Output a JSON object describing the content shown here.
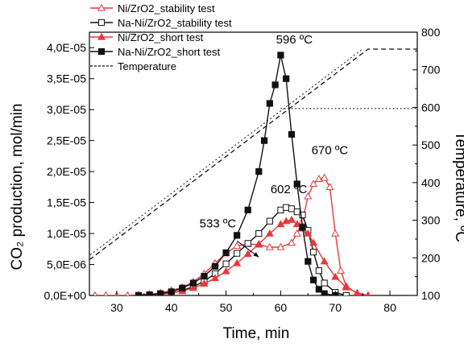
{
  "chart_data": {
    "type": "line",
    "xlabel": "Time, min",
    "ylabel_left": "CO₂ production, mol/min",
    "ylabel_right": "Temperature, ºC",
    "xlim": [
      25,
      85
    ],
    "ylim_left": [
      0,
      4.25e-05
    ],
    "ylim_right": [
      100,
      800
    ],
    "x_ticks": [
      30,
      40,
      50,
      60,
      70,
      80
    ],
    "y_left_ticks": [
      {
        "value": 0,
        "label": "0,0E+00"
      },
      {
        "value": 5e-06,
        "label": "5,0E-06"
      },
      {
        "value": 1e-05,
        "label": "1,0E-05"
      },
      {
        "value": 1.5e-05,
        "label": "1,5E-05"
      },
      {
        "value": 2e-05,
        "label": "2,0E-05"
      },
      {
        "value": 2.5e-05,
        "label": "2,5E-05"
      },
      {
        "value": 3e-05,
        "label": "3,0E-05"
      },
      {
        "value": 3.5e-05,
        "label": "3,5E-05"
      },
      {
        "value": 4e-05,
        "label": "4,0E-05"
      }
    ],
    "y_right_ticks": [
      100,
      200,
      300,
      400,
      500,
      600,
      700,
      800
    ],
    "series": [
      {
        "name": "Ni/ZrO2_stability test",
        "color": "#e8383d",
        "marker": "triangle-open",
        "axis": "left",
        "x": [
          26,
          28,
          30,
          32,
          34,
          36,
          38,
          40,
          42,
          44,
          46,
          48,
          50,
          52,
          54,
          56,
          58,
          60,
          62,
          63,
          64,
          65,
          66,
          67,
          68,
          69,
          70,
          71,
          72,
          74,
          76
        ],
        "y": [
          0,
          0,
          0,
          0,
          1e-07,
          2e-07,
          4e-07,
          8e-07,
          1.3e-06,
          2.2e-06,
          3.5e-06,
          5.2e-06,
          6.8e-06,
          8e-06,
          8.3e-06,
          8.2e-06,
          7.8e-06,
          7.8e-06,
          8.5e-06,
          1e-05,
          1.2e-05,
          1.6e-05,
          1.8e-05,
          1.88e-05,
          1.9e-05,
          1.75e-05,
          1e-05,
          4e-06,
          1.5e-06,
          3e-07,
          0
        ]
      },
      {
        "name": "Na-Ni/ZrO2_stability test",
        "color": "#111111",
        "marker": "square-open",
        "axis": "left",
        "x": [
          34,
          36,
          38,
          40,
          42,
          44,
          46,
          48,
          50,
          52,
          54,
          56,
          58,
          60,
          61,
          62,
          63,
          64,
          65,
          66,
          67,
          68,
          70,
          72
        ],
        "y": [
          0,
          1e-07,
          2e-07,
          4e-07,
          8e-07,
          1.4e-06,
          2.3e-06,
          3.5e-06,
          5.1e-06,
          6.8e-06,
          8.4e-06,
          1e-05,
          1.2e-05,
          1.38e-05,
          1.42e-05,
          1.4e-05,
          1.35e-05,
          1.3e-05,
          1.05e-05,
          7e-06,
          4e-06,
          2e-06,
          5e-07,
          0
        ]
      },
      {
        "name": "Ni/ZrO2_short test",
        "color": "#e8383d",
        "marker": "triangle-filled",
        "axis": "left",
        "x": [
          34,
          36,
          38,
          40,
          42,
          44,
          46,
          48,
          50,
          52,
          54,
          56,
          58,
          60,
          61,
          62,
          63,
          64,
          65,
          66,
          68,
          70,
          72,
          74,
          76
        ],
        "y": [
          0,
          1e-07,
          2e-07,
          4e-07,
          7e-07,
          1.2e-06,
          1.9e-06,
          2.8e-06,
          3.9e-06,
          5.2e-06,
          6.7e-06,
          8.3e-06,
          1e-05,
          1.15e-05,
          1.2e-05,
          1.22e-05,
          1.15e-05,
          1.08e-05,
          1e-05,
          8.5e-06,
          5.5e-06,
          3e-06,
          1.3e-06,
          4e-07,
          0
        ]
      },
      {
        "name": "Na-Ni/ZrO2_short test",
        "color": "#111111",
        "marker": "square-filled",
        "axis": "left",
        "x": [
          34,
          36,
          38,
          40,
          42,
          44,
          46,
          48,
          50,
          52,
          54,
          56,
          57,
          58,
          59,
          60,
          61,
          62,
          63,
          64,
          65,
          66,
          67,
          68,
          70
        ],
        "y": [
          0,
          1e-07,
          3e-07,
          6e-07,
          1.2e-06,
          2e-06,
          3.1e-06,
          4.7e-06,
          6.9e-06,
          9.7e-06,
          1.38e-05,
          2e-05,
          2.5e-05,
          3.1e-05,
          3.4e-05,
          3.88e-05,
          3.5e-05,
          2.6e-05,
          1.8e-05,
          1.1e-05,
          5.5e-06,
          2.5e-06,
          1e-06,
          3e-07,
          0
        ]
      },
      {
        "name": "Temperature",
        "color": "#111111",
        "marker": "none",
        "style": "dashed",
        "axis": "right",
        "x": [
          25,
          76,
          85
        ],
        "y": [
          195,
          755,
          755
        ]
      }
    ],
    "reference_line": {
      "axis": "right",
      "value": 597,
      "x_from": 60,
      "x_to": 85,
      "style": "dotted"
    },
    "annotations": [
      {
        "text": "596 ºC",
        "x": 62.5,
        "y": 4.07e-05
      },
      {
        "text": "670 ºC",
        "x": 69,
        "y": 2.28e-05
      },
      {
        "text": "602 ºC",
        "x": 61.5,
        "y": 1.65e-05
      },
      {
        "text": "533 ºC",
        "x": 48.5,
        "y": 1.1e-05
      }
    ],
    "arrow": {
      "from": [
        52,
        8.8e-06
      ],
      "to": [
        56,
        6.2e-06
      ]
    },
    "legend_position": "top-left"
  }
}
